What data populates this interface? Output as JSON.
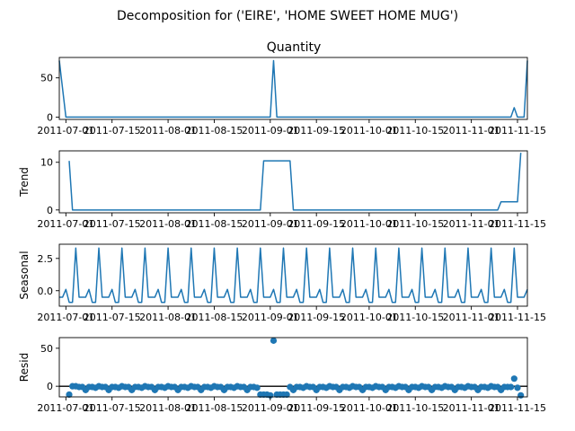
{
  "figure": {
    "suptitle": "Decomposition for ('EIRE', 'HOME SWEET HOME MUG')",
    "x_tick_labels": [
      "2011-07-01",
      "2011-07-15",
      "2011-08-01",
      "2011-08-15",
      "2011-09-01",
      "2011-09-15",
      "2011-10-01",
      "2011-10-15",
      "2011-11-01",
      "2011-11-15"
    ]
  },
  "colors": {
    "series": "#1f77b4",
    "axis": "#000000"
  },
  "chart_data": [
    {
      "type": "line",
      "title": "Quantity",
      "ylabel": "",
      "ylim": [
        -3,
        76
      ],
      "yticks": [
        0,
        50
      ],
      "xlim": [
        "2011-06-29",
        "2011-11-18"
      ],
      "grid": false,
      "series": [
        {
          "points": [
            [
              "2011-06-29",
              72
            ],
            [
              "2011-07-01",
              0
            ],
            [
              "2011-09-01",
              0
            ],
            [
              "2011-09-02",
              72
            ],
            [
              "2011-09-03",
              0
            ],
            [
              "2011-11-13",
              0
            ],
            [
              "2011-11-14",
              12
            ],
            [
              "2011-11-15",
              0
            ],
            [
              "2011-11-17",
              0
            ],
            [
              "2011-11-18",
              72
            ]
          ]
        }
      ]
    },
    {
      "type": "line",
      "title": "",
      "ylabel": "Trend",
      "ylim": [
        -0.6,
        12.4
      ],
      "yticks": [
        0,
        10
      ],
      "xlim": [
        "2011-06-29",
        "2011-11-18"
      ],
      "grid": false,
      "series": [
        {
          "points": [
            [
              "2011-07-02",
              10.3
            ],
            [
              "2011-07-03",
              0
            ],
            [
              "2011-08-29",
              0
            ],
            [
              "2011-08-30",
              10.3
            ],
            [
              "2011-09-07",
              10.3
            ],
            [
              "2011-09-08",
              0
            ],
            [
              "2011-11-09",
              0
            ],
            [
              "2011-11-10",
              1.7
            ],
            [
              "2011-11-15",
              1.7
            ],
            [
              "2011-11-16",
              12
            ]
          ]
        }
      ]
    },
    {
      "type": "line",
      "title": "",
      "ylabel": "Seasonal",
      "ylim": [
        -1.2,
        3.6
      ],
      "yticks": [
        -0.0,
        2.5
      ],
      "ytick_labels": [
        "0.0",
        "2.5"
      ],
      "xlim": [
        "2011-06-29",
        "2011-11-18"
      ],
      "grid": false,
      "series": [
        {
          "period_days": 7,
          "start": "2011-06-29",
          "end": "2011-11-18",
          "pattern": [
            -0.5,
            -0.5,
            0.1,
            -0.9,
            -0.9,
            3.3,
            -0.5
          ]
        }
      ]
    },
    {
      "type": "scatter",
      "title": "",
      "ylabel": "Resid",
      "ylim": [
        -14,
        64
      ],
      "yticks": [
        0,
        50
      ],
      "xlim": [
        "2011-06-29",
        "2011-11-18"
      ],
      "hline": 0,
      "grid": false,
      "series": [
        {
          "pattern": [
            -1,
            -2,
            0,
            -1,
            -1,
            -5,
            -1
          ],
          "overrides": [
            [
              "2011-07-02",
              -11
            ],
            [
              "2011-07-03",
              0
            ],
            [
              "2011-08-29",
              -11
            ],
            [
              "2011-08-30",
              -11
            ],
            [
              "2011-08-31",
              -11
            ],
            [
              "2011-09-01",
              -12
            ],
            [
              "2011-09-02",
              60
            ],
            [
              "2011-09-03",
              -11
            ],
            [
              "2011-09-04",
              -11
            ],
            [
              "2011-09-05",
              -11
            ],
            [
              "2011-09-06",
              -11
            ],
            [
              "2011-11-13",
              -1
            ],
            [
              "2011-11-14",
              10
            ],
            [
              "2011-11-15",
              -2
            ],
            [
              "2011-11-16",
              -12
            ]
          ],
          "start": "2011-07-02",
          "end": "2011-11-16"
        }
      ]
    }
  ]
}
